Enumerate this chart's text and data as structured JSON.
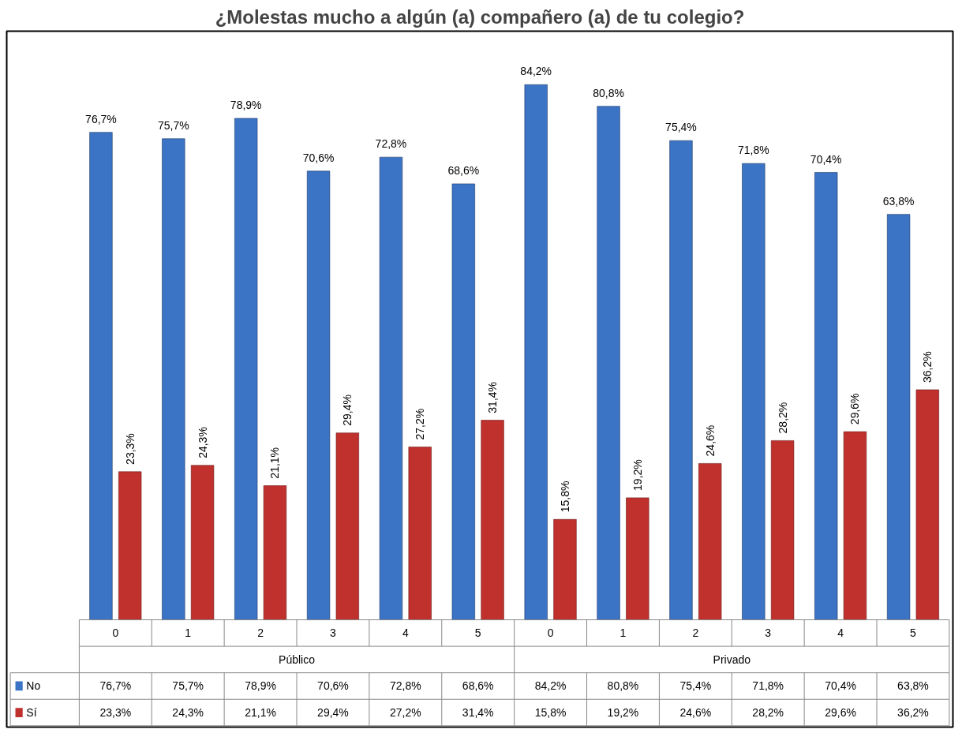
{
  "chart_data": {
    "type": "bar",
    "title": "¿Molestas mucho a algún (a) compañero (a) de tu colegio?",
    "categories": [
      "0",
      "1",
      "2",
      "3",
      "4",
      "5",
      "0",
      "1",
      "2",
      "3",
      "4",
      "5"
    ],
    "annotations": [
      "Público",
      "Privado"
    ],
    "legend": "bottom",
    "series": [
      {
        "name": "No",
        "color": "#3b73c5",
        "values": [
          76.7,
          75.7,
          78.9,
          70.6,
          72.8,
          68.6,
          84.2,
          80.8,
          75.4,
          71.8,
          70.4,
          63.8
        ],
        "value_labels": [
          "76,7%",
          "75,7%",
          "78,9%",
          "70,6%",
          "72,8%",
          "68,6%",
          "84,2%",
          "80,8%",
          "75,4%",
          "71,8%",
          "70,4%",
          "63,8%"
        ]
      },
      {
        "name": "Sí",
        "color": "#c0312d",
        "values": [
          23.3,
          24.3,
          21.1,
          29.4,
          27.2,
          31.4,
          15.8,
          19.2,
          24.6,
          28.2,
          29.6,
          36.2
        ],
        "value_labels": [
          "23,3%",
          "24,3%",
          "21,1%",
          "29,4%",
          "27,2%",
          "31,4%",
          "15,8%",
          "19,2%",
          "24,6%",
          "28,2%",
          "29,6%",
          "36,2%"
        ]
      }
    ]
  }
}
